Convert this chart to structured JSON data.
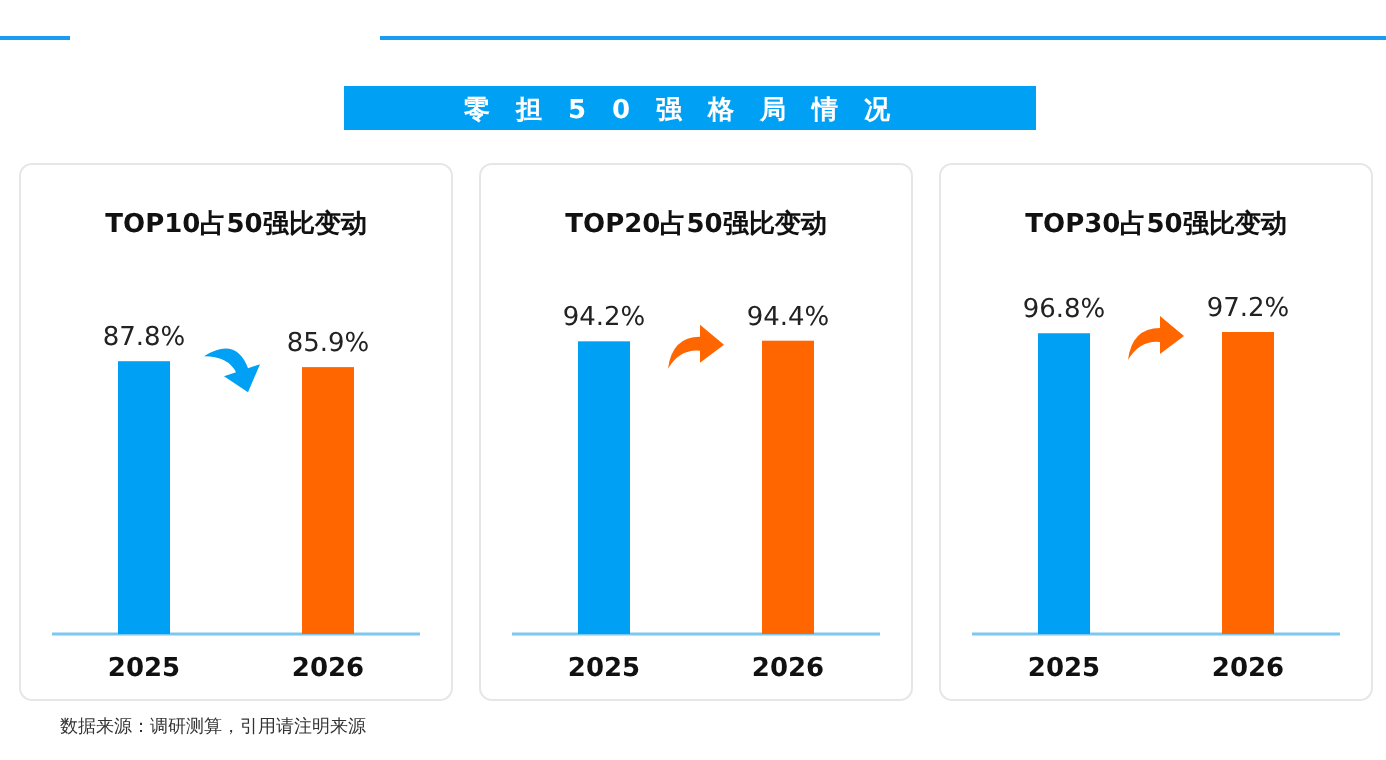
{
  "chart_data": [
    {
      "type": "other",
      "title": "零担50强格局情况",
      "annotations": [
        "数据来源：调研测算，引用请注明来源"
      ]
    },
    {
      "type": "bar",
      "title": "TOP10占50强比变动",
      "categories": [
        "2025",
        "2026"
      ],
      "values": [
        87.8,
        85.9
      ],
      "colors": [
        "#00a0f5",
        "#ff6600"
      ],
      "value_labels": [
        "87.8%",
        "85.9%"
      ]
    },
    {
      "type": "bar",
      "title": "TOP20占50强比变动",
      "categories": [
        "2025",
        "2026"
      ],
      "values": [
        94.2,
        94.4
      ],
      "colors": [
        "#00a0f5",
        "#ff6600"
      ],
      "value_labels": [
        "94.2%",
        "94.4%"
      ]
    },
    {
      "type": "bar",
      "title": "TOP30占50强比变动",
      "categories": [
        "2025",
        "2026"
      ],
      "values": [
        96.8,
        97.2
      ],
      "colors": [
        "#00a0f5",
        "#ff6600"
      ],
      "value_labels": [
        "96.8%",
        "97.2%"
      ]
    }
  ]
}
